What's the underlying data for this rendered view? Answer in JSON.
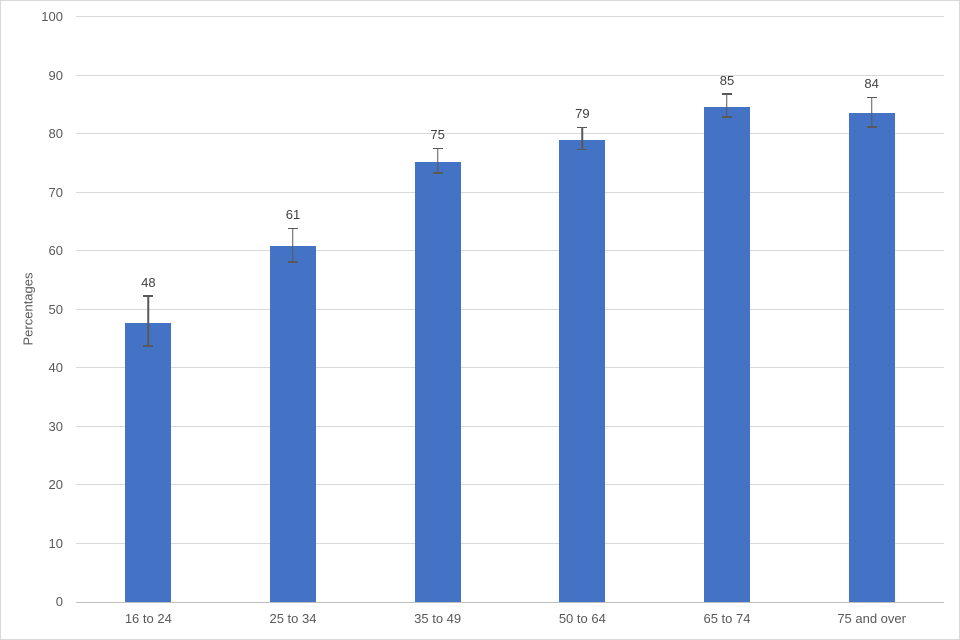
{
  "chart": {
    "background_color": "#ffffff",
    "border_color": "#d9d9d9",
    "bar_color": "#4472c4",
    "gridline_color": "#d9d9d9",
    "axis_line_color": "#bfbfbf",
    "tick_label_color": "#595959",
    "data_label_color": "#404040",
    "error_bar_color": "#595959"
  },
  "chart_data": {
    "type": "bar",
    "title": "",
    "categories": [
      "16 to 24",
      "25 to 34",
      "35 to 49",
      "50 to 64",
      "65 to 74",
      "75 and over"
    ],
    "values": [
      48,
      61,
      75,
      79,
      85,
      84
    ],
    "bar_tops_precise": [
      47.7,
      60.8,
      75.2,
      78.9,
      84.7,
      83.6
    ],
    "error_low": [
      43.6,
      58.0,
      73.2,
      77.2,
      82.8,
      81.1
    ],
    "error_high": [
      52.2,
      63.7,
      77.4,
      81.0,
      86.7,
      86.1
    ],
    "xlabel": "",
    "ylabel": "Percentages",
    "ylim": [
      0,
      100
    ],
    "ytick_step": 10,
    "yticks": [
      0,
      10,
      20,
      30,
      40,
      50,
      60,
      70,
      80,
      90,
      100
    ],
    "grid": true,
    "legend": "none",
    "error_bars": true
  }
}
